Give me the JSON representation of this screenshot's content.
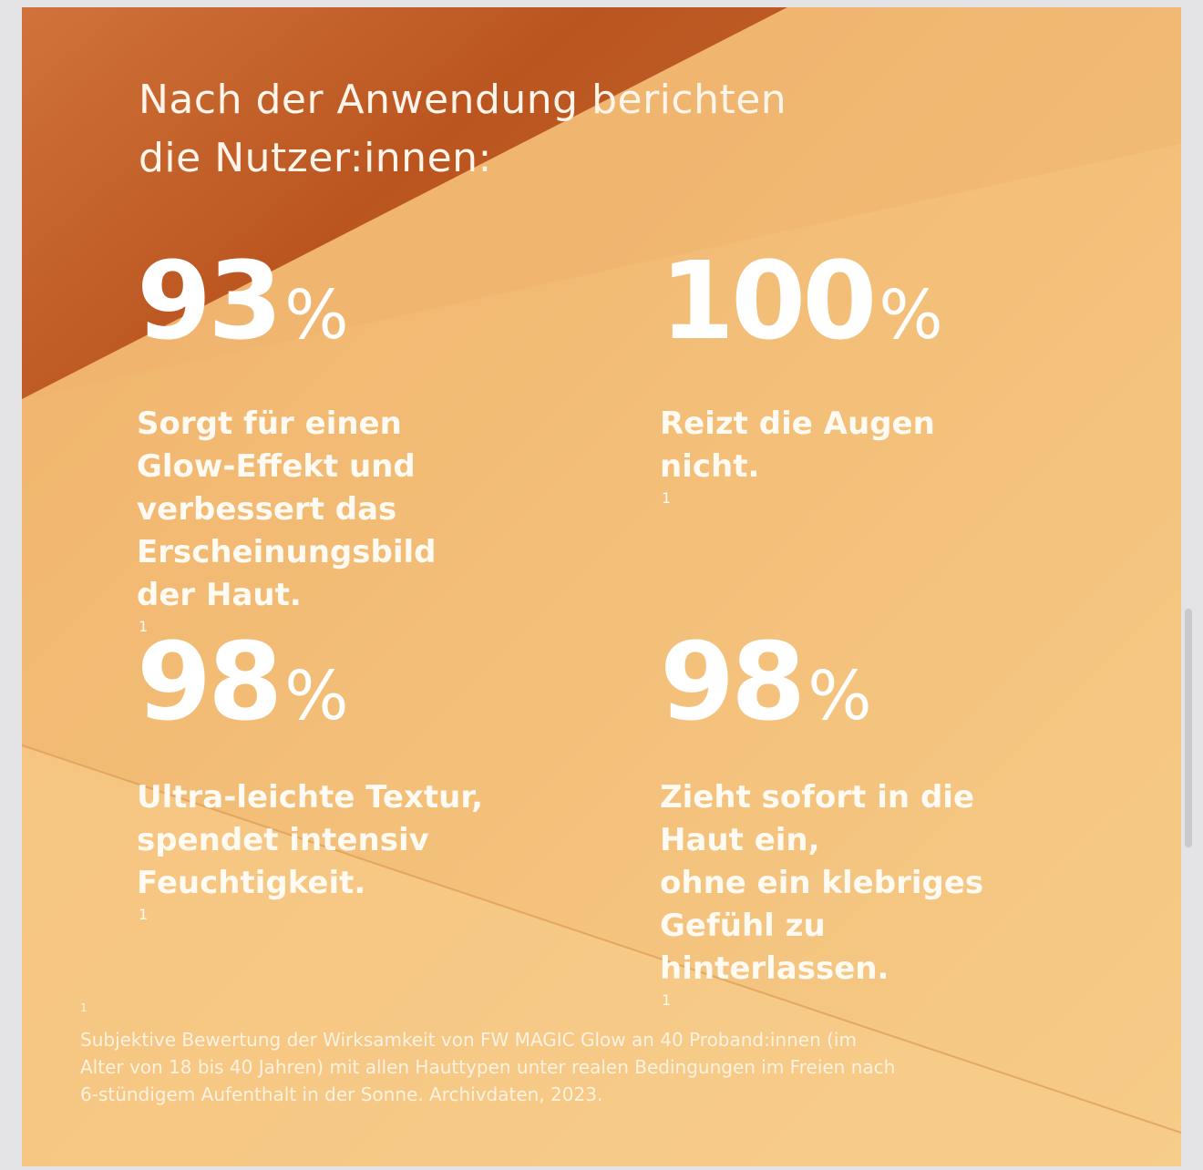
{
  "headline": {
    "line1": "Nach der Anwendung berichten",
    "line2": "die Nutzer:innen:"
  },
  "stats": [
    {
      "value": "93",
      "unit": "%",
      "lines": [
        "Sorgt für einen",
        "Glow-Effekt und",
        "verbessert das",
        "Erscheinungsbild",
        "der Haut."
      ],
      "footnote_ref": "1"
    },
    {
      "value": "100",
      "unit": "%",
      "lines": [
        "Reizt die Augen",
        "nicht."
      ],
      "footnote_ref": "1"
    },
    {
      "value": "98",
      "unit": "%",
      "lines": [
        "Ultra-leichte Textur,",
        "spendet intensiv",
        "Feuchtigkeit."
      ],
      "footnote_ref": "1"
    },
    {
      "value": "98",
      "unit": "%",
      "lines": [
        "Zieht sofort in die",
        "Haut ein,",
        "ohne ein klebriges",
        "Gefühl zu",
        "hinterlassen."
      ],
      "footnote_ref": "1"
    }
  ],
  "footnote": {
    "marker": "1",
    "lines": [
      "Subjektive Bewertung der Wirksamkeit von FW MAGIC Glow an 40 Proband:innen (im",
      "Alter von 18 bis 40 Jahren) mit allen Hauttypen unter realen Bedingungen im Freien nach",
      "6-stündigem Aufenthalt in der Sonne. Archivdaten, 2023."
    ]
  },
  "colors": {
    "dark_orange": "#c25a22",
    "light_orange": "#f5c884",
    "text": "#ffffff"
  }
}
